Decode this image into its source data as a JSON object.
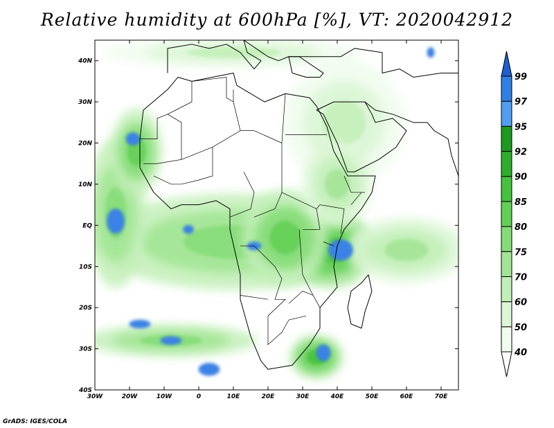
{
  "title": "Relative humidity at 600hPa [%], VT: 2020042912",
  "credit": "GrADS: IGES/COLA",
  "map": {
    "lon_range": [
      -30,
      75
    ],
    "lat_range": [
      -40,
      45
    ],
    "lon_ticks": [
      {
        "v": -30,
        "label": "30W"
      },
      {
        "v": -20,
        "label": "20W"
      },
      {
        "v": -10,
        "label": "10W"
      },
      {
        "v": 0,
        "label": "0"
      },
      {
        "v": 10,
        "label": "10E"
      },
      {
        "v": 20,
        "label": "20E"
      },
      {
        "v": 30,
        "label": "30E"
      },
      {
        "v": 40,
        "label": "40E"
      },
      {
        "v": 50,
        "label": "50E"
      },
      {
        "v": 60,
        "label": "60E"
      },
      {
        "v": 70,
        "label": "70E"
      }
    ],
    "lat_ticks": [
      {
        "v": 40,
        "label": "40N"
      },
      {
        "v": 30,
        "label": "30N"
      },
      {
        "v": 20,
        "label": "20N"
      },
      {
        "v": 10,
        "label": "10N"
      },
      {
        "v": 0,
        "label": "EQ"
      },
      {
        "v": -10,
        "label": "10S"
      },
      {
        "v": -20,
        "label": "20S"
      },
      {
        "v": -30,
        "label": "30S"
      },
      {
        "v": -40,
        "label": "40S"
      }
    ]
  },
  "colorbar": {
    "levels": [
      "40",
      "50",
      "60",
      "70",
      "75",
      "80",
      "85",
      "90",
      "92",
      "95",
      "97",
      "99"
    ],
    "colors": [
      "#f0fcee",
      "#dcf6d6",
      "#c2efb8",
      "#a2e594",
      "#84dc76",
      "#62cf55",
      "#45c23d",
      "#2eae2b",
      "#1b9a20",
      "#4f9ef2",
      "#2f7fe4",
      "#1e5fd0"
    ]
  },
  "humidity_regions": [
    {
      "name": "equatorial-belt",
      "lon": 10,
      "lat": -4,
      "rx": 32,
      "ry": 9,
      "level": 75
    },
    {
      "name": "east-africa",
      "lon": 38,
      "lat": -6,
      "rx": 10,
      "ry": 7,
      "level": 85
    },
    {
      "name": "congo-basin",
      "lon": 25,
      "lat": -3,
      "rx": 10,
      "ry": 9,
      "level": 80
    },
    {
      "name": "atlantic-west",
      "lon": -24,
      "lat": 3,
      "rx": 7,
      "ry": 14,
      "level": 75
    },
    {
      "name": "west-africa-coast",
      "lon": -18,
      "lat": 18,
      "rx": 6,
      "ry": 8,
      "level": 80
    },
    {
      "name": "middle-east",
      "lon": 42,
      "lat": 25,
      "rx": 14,
      "ry": 12,
      "level": 60
    },
    {
      "name": "horn-of-africa",
      "lon": 40,
      "lat": 10,
      "rx": 8,
      "ry": 8,
      "level": 70
    },
    {
      "name": "southeast-africa",
      "lon": 34,
      "lat": -32,
      "rx": 6,
      "ry": 4,
      "level": 85
    },
    {
      "name": "south-atlantic-band",
      "lon": -8,
      "lat": -28,
      "rx": 20,
      "ry": 3,
      "level": 75
    },
    {
      "name": "mediterranean",
      "lon": 10,
      "lat": 42,
      "rx": 30,
      "ry": 3,
      "level": 60
    },
    {
      "name": "indian-ocean",
      "lon": 60,
      "lat": -6,
      "rx": 14,
      "ry": 6,
      "level": 70
    }
  ],
  "saturated_patches": [
    {
      "lon": -24,
      "lat": 1,
      "rx": 2.5,
      "ry": 3
    },
    {
      "lon": -19,
      "lat": 21,
      "rx": 2,
      "ry": 1.5
    },
    {
      "lon": 16,
      "lat": -5,
      "rx": 2,
      "ry": 1
    },
    {
      "lon": 41,
      "lat": -6,
      "rx": 3.5,
      "ry": 2.5
    },
    {
      "lon": 36,
      "lat": -31,
      "rx": 2,
      "ry": 2
    },
    {
      "lon": 3,
      "lat": -35,
      "rx": 3,
      "ry": 1.5
    },
    {
      "lon": -17,
      "lat": -24,
      "rx": 3,
      "ry": 1
    },
    {
      "lon": -8,
      "lat": -28,
      "rx": 3,
      "ry": 1
    },
    {
      "lon": 67,
      "lat": 42,
      "rx": 1,
      "ry": 1.2
    },
    {
      "lon": -3,
      "lat": -1,
      "rx": 1.5,
      "ry": 1
    }
  ],
  "coastlines": [
    {
      "name": "africa",
      "pts": [
        [
          -17,
          21
        ],
        [
          -16,
          28
        ],
        [
          -9,
          33
        ],
        [
          -6,
          36
        ],
        [
          -2,
          35
        ],
        [
          10,
          37
        ],
        [
          11,
          34
        ],
        [
          19,
          30
        ],
        [
          25,
          32
        ],
        [
          32,
          31
        ],
        [
          34,
          29
        ],
        [
          37,
          24
        ],
        [
          39,
          18
        ],
        [
          43,
          12
        ],
        [
          51,
          12
        ],
        [
          50,
          8
        ],
        [
          47,
          4
        ],
        [
          42,
          -1
        ],
        [
          40,
          -5
        ],
        [
          39,
          -10
        ],
        [
          40,
          -15
        ],
        [
          35,
          -20
        ],
        [
          35,
          -25
        ],
        [
          32,
          -29
        ],
        [
          27,
          -34
        ],
        [
          20,
          -35
        ],
        [
          18,
          -33
        ],
        [
          15,
          -27
        ],
        [
          12,
          -18
        ],
        [
          12,
          -12
        ],
        [
          9,
          -1
        ],
        [
          9,
          4
        ],
        [
          5,
          6
        ],
        [
          0,
          5
        ],
        [
          -5,
          5
        ],
        [
          -8,
          4
        ],
        [
          -13,
          8
        ],
        [
          -17,
          14
        ],
        [
          -17,
          21
        ]
      ]
    },
    {
      "name": "arabia",
      "pts": [
        [
          34,
          28
        ],
        [
          36,
          27
        ],
        [
          40,
          20
        ],
        [
          43,
          13
        ],
        [
          45,
          13
        ],
        [
          52,
          16
        ],
        [
          57,
          19
        ],
        [
          60,
          23
        ],
        [
          56,
          26
        ],
        [
          51,
          25
        ],
        [
          50,
          27
        ],
        [
          48,
          30
        ],
        [
          44,
          30
        ],
        [
          39,
          30
        ],
        [
          34,
          28
        ]
      ]
    },
    {
      "name": "madagascar",
      "pts": [
        [
          49,
          -12
        ],
        [
          50,
          -16
        ],
        [
          48,
          -21
        ],
        [
          47,
          -25
        ],
        [
          44,
          -24
        ],
        [
          43,
          -20
        ],
        [
          44,
          -16
        ],
        [
          47,
          -14
        ],
        [
          49,
          -12
        ]
      ]
    },
    {
      "name": "europe",
      "pts": [
        [
          -9,
          37
        ],
        [
          -9,
          43
        ],
        [
          -2,
          44
        ],
        [
          3,
          43
        ],
        [
          8,
          44
        ],
        [
          12,
          42
        ],
        [
          16,
          38
        ],
        [
          18,
          40
        ],
        [
          14,
          42
        ],
        [
          13,
          45
        ],
        [
          20,
          41
        ],
        [
          23,
          40
        ],
        [
          26,
          41
        ],
        [
          29,
          41
        ],
        [
          36,
          37
        ],
        [
          35,
          36
        ],
        [
          31,
          36
        ],
        [
          27,
          37
        ],
        [
          26,
          41
        ]
      ]
    },
    {
      "name": "turkey-caucasus",
      "pts": [
        [
          26,
          41
        ],
        [
          41,
          41
        ],
        [
          45,
          43
        ],
        [
          53,
          42
        ],
        [
          53,
          37
        ],
        [
          58,
          38
        ],
        [
          62,
          36
        ],
        [
          70,
          37
        ],
        [
          75,
          37
        ]
      ]
    },
    {
      "name": "iran-coast",
      "pts": [
        [
          48,
          30
        ],
        [
          51,
          28
        ],
        [
          56,
          27
        ],
        [
          62,
          25
        ],
        [
          66,
          25
        ],
        [
          68,
          23
        ],
        [
          72,
          21
        ],
        [
          73,
          17
        ],
        [
          75,
          12
        ]
      ]
    }
  ],
  "borders": [
    [
      [
        -9,
        27
      ],
      [
        -2,
        30
      ],
      [
        -2,
        35
      ]
    ],
    [
      [
        -2,
        35
      ],
      [
        8,
        36
      ],
      [
        8,
        31
      ],
      [
        10,
        30
      ],
      [
        12,
        23
      ],
      [
        16,
        23
      ]
    ],
    [
      [
        -17,
        21
      ],
      [
        -12,
        21
      ],
      [
        -12,
        26
      ],
      [
        -9,
        27
      ]
    ],
    [
      [
        -9,
        27
      ],
      [
        -5,
        25
      ],
      [
        -5,
        16
      ],
      [
        -12,
        15
      ],
      [
        -16,
        15
      ]
    ],
    [
      [
        -5,
        16
      ],
      [
        4,
        19
      ],
      [
        12,
        23
      ],
      [
        16,
        23
      ],
      [
        24,
        20
      ],
      [
        24,
        8
      ]
    ],
    [
      [
        4,
        19
      ],
      [
        4,
        12
      ],
      [
        0,
        11
      ],
      [
        -5,
        10
      ],
      [
        -8,
        10
      ],
      [
        -13,
        12
      ]
    ],
    [
      [
        10,
        30
      ],
      [
        10,
        33
      ]
    ],
    [
      [
        24,
        20
      ],
      [
        25,
        32
      ]
    ],
    [
      [
        25,
        22
      ],
      [
        37,
        22
      ]
    ],
    [
      [
        24,
        8
      ],
      [
        22,
        4
      ],
      [
        16,
        2
      ]
    ],
    [
      [
        13,
        13
      ],
      [
        16,
        8
      ],
      [
        15,
        4
      ],
      [
        9,
        2
      ]
    ],
    [
      [
        24,
        8
      ],
      [
        34,
        4
      ],
      [
        35,
        5
      ],
      [
        42,
        4
      ],
      [
        41,
        -2
      ]
    ],
    [
      [
        29,
        -1
      ],
      [
        30,
        -12
      ],
      [
        33,
        -17
      ],
      [
        35,
        -20
      ]
    ],
    [
      [
        12,
        -5
      ],
      [
        16,
        -5
      ],
      [
        22,
        -10
      ],
      [
        24,
        -13
      ],
      [
        22,
        -18
      ],
      [
        25,
        -18
      ],
      [
        20,
        -22
      ],
      [
        20,
        -29
      ],
      [
        24,
        -26
      ],
      [
        26,
        -23
      ],
      [
        31,
        -22
      ]
    ],
    [
      [
        12,
        -17
      ],
      [
        20,
        -18
      ]
    ],
    [
      [
        26,
        -19
      ],
      [
        30,
        -16
      ],
      [
        33,
        -17
      ]
    ],
    [
      [
        36,
        -4
      ],
      [
        39,
        -5
      ]
    ],
    [
      [
        34,
        4
      ],
      [
        35,
        -1
      ],
      [
        32,
        -1
      ]
    ],
    [
      [
        30,
        -1
      ],
      [
        34,
        -1
      ]
    ],
    [
      [
        42,
        12
      ],
      [
        44,
        8
      ],
      [
        48,
        8
      ]
    ],
    [
      [
        44,
        5
      ],
      [
        47,
        8
      ],
      [
        48,
        8
      ]
    ]
  ]
}
